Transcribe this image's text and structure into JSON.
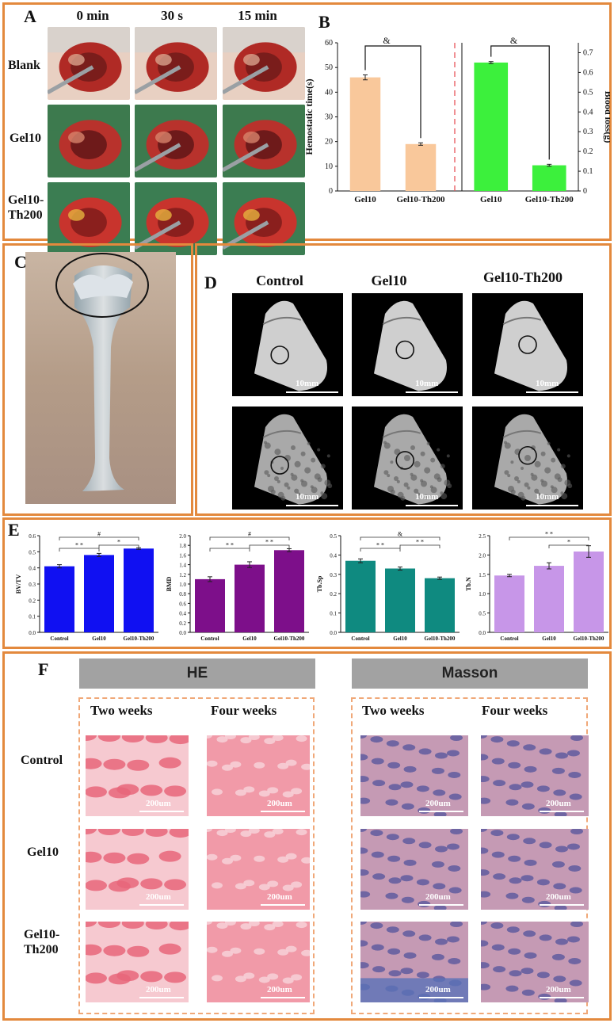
{
  "panelA": {
    "label": "A",
    "cols": [
      "0 min",
      "30 s",
      "15 min"
    ],
    "rows": [
      "Blank",
      "Gel10",
      "Gel10-\nTh200"
    ]
  },
  "panelB": {
    "label": "B"
  },
  "chart_data": [
    {
      "type": "bar",
      "panel": "B-left",
      "categories": [
        "Gel10",
        "Gel10-Th200"
      ],
      "values": [
        46,
        19
      ],
      "errors": [
        1,
        0.5
      ],
      "ylabel": "Hemostatic time(s)",
      "ylim": [
        0,
        60
      ],
      "yticks": [
        0,
        10,
        20,
        30,
        40,
        50,
        60
      ],
      "color": "#f9c89b",
      "significance": [
        {
          "from": 0,
          "to": 1,
          "label": "&"
        }
      ]
    },
    {
      "type": "bar",
      "panel": "B-right",
      "categories": [
        "Gel10",
        "Gel10-Th200"
      ],
      "values": [
        0.65,
        0.13
      ],
      "errors": [
        0.005,
        0.005
      ],
      "ylabel": "Blood loss(g)",
      "ylim": [
        0,
        0.75
      ],
      "yticks": [
        0.0,
        0.1,
        0.2,
        0.3,
        0.4,
        0.5,
        0.6,
        0.7
      ],
      "color": "#3cf03c",
      "significance": [
        {
          "from": 0,
          "to": 1,
          "label": "&"
        }
      ]
    },
    {
      "type": "bar",
      "panel": "E1",
      "categories": [
        "Control",
        "Gel10",
        "Gel10-Th200"
      ],
      "values": [
        0.41,
        0.48,
        0.52
      ],
      "errors": [
        0.01,
        0.01,
        0.005
      ],
      "ylabel": "BV/TV",
      "ylim": [
        0,
        0.6
      ],
      "yticks": [
        "0.0",
        "0.1",
        "0.2",
        "0.3",
        "0.4",
        "0.5",
        "0.6"
      ],
      "color": "#1010f2",
      "significance": [
        {
          "from": 0,
          "to": 2,
          "label": "#"
        },
        {
          "from": 0,
          "to": 1,
          "label": "* *"
        },
        {
          "from": 1,
          "to": 2,
          "label": "*"
        }
      ]
    },
    {
      "type": "bar",
      "panel": "E2",
      "categories": [
        "Control",
        "Gel10",
        "Gel10-Th200"
      ],
      "values": [
        1.1,
        1.4,
        1.7
      ],
      "errors": [
        0.05,
        0.06,
        0.03
      ],
      "ylabel": "BMD",
      "ylim": [
        0,
        2.0
      ],
      "yticks": [
        "0.0",
        "0.2",
        "0.4",
        "0.6",
        "0.8",
        "1.0",
        "1.2",
        "1.4",
        "1.6",
        "1.8",
        "2.0"
      ],
      "color": "#7d0f8a",
      "significance": [
        {
          "from": 0,
          "to": 2,
          "label": "#"
        },
        {
          "from": 0,
          "to": 1,
          "label": "* *"
        },
        {
          "from": 1,
          "to": 2,
          "label": "* *"
        }
      ]
    },
    {
      "type": "bar",
      "panel": "E3",
      "categories": [
        "Control",
        "Gel10",
        "Gel10-Th200"
      ],
      "values": [
        0.37,
        0.33,
        0.28
      ],
      "errors": [
        0.01,
        0.008,
        0.006
      ],
      "ylabel": "Tb.Sp",
      "ylim": [
        0,
        0.5
      ],
      "yticks": [
        "0.0",
        "0.1",
        "0.2",
        "0.3",
        "0.4",
        "0.5"
      ],
      "color": "#0f8a80",
      "significance": [
        {
          "from": 0,
          "to": 2,
          "label": "&"
        },
        {
          "from": 0,
          "to": 1,
          "label": "* *"
        },
        {
          "from": 1,
          "to": 2,
          "label": "* *"
        }
      ]
    },
    {
      "type": "bar",
      "panel": "E4",
      "categories": [
        "Control",
        "Gel10",
        "Gel10-Th200"
      ],
      "values": [
        1.47,
        1.72,
        2.09
      ],
      "errors": [
        0.03,
        0.08,
        0.15
      ],
      "ylabel": "Tb.N",
      "ylim": [
        0,
        2.5
      ],
      "yticks": [
        "0.0",
        "0.5",
        "1.0",
        "1.5",
        "2.0",
        "2.5"
      ],
      "color": "#c796e8",
      "significance": [
        {
          "from": 0,
          "to": 2,
          "label": "* *"
        },
        {
          "from": 1,
          "to": 2,
          "label": "*"
        }
      ]
    }
  ],
  "panelC": {
    "label": "C"
  },
  "panelD": {
    "label": "D",
    "cols": [
      "Control",
      "Gel10",
      "Gel10-Th200"
    ],
    "scale": "10mm"
  },
  "panelE": {
    "label": "E"
  },
  "panelF": {
    "label": "F",
    "stains": [
      "HE",
      "Masson"
    ],
    "times": [
      "Two weeks",
      "Four weeks"
    ],
    "rows": [
      "Control",
      "Gel10",
      "Gel10-\nTh200"
    ],
    "scale": "200um"
  },
  "colors": {
    "border": "#e3893d",
    "dashed": "#f0a878",
    "he_tissue": "#f29aaa",
    "masson_blue": "#4a4f9a"
  }
}
